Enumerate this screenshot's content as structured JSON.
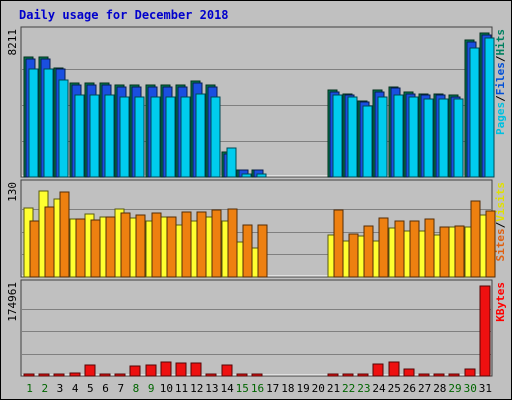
{
  "chart_data": [
    {
      "type": "bar",
      "title": "Daily usage for December 2018",
      "panel": "top",
      "y_max_label": "8211",
      "ylim": [
        0,
        8211
      ],
      "grid": true,
      "legend_placement": "right (vertical)",
      "legend": [
        {
          "label": "Pages",
          "color": "#00c0e0"
        },
        {
          "label": "/",
          "color": "#000000"
        },
        {
          "label": "Files",
          "color": "#0050d8"
        },
        {
          "label": "/",
          "color": "#000000"
        },
        {
          "label": "Hits",
          "color": "#008060"
        }
      ],
      "series": [
        {
          "name": "Hits",
          "color": "#008050",
          "values": [
            6850,
            6850,
            6200,
            5350,
            5350,
            5350,
            5250,
            5250,
            5250,
            5250,
            5250,
            5450,
            5250,
            1400,
            420,
            420,
            0,
            0,
            0,
            0,
            4950,
            4750,
            4350,
            4950,
            5150,
            4850,
            4750,
            4750,
            4650,
            7800,
            8211
          ]
        },
        {
          "name": "Files",
          "color": "#1a4fe0",
          "values": [
            6750,
            6750,
            6150,
            5250,
            5250,
            5250,
            5150,
            5150,
            5150,
            5150,
            5150,
            5350,
            5150,
            1300,
            400,
            400,
            0,
            0,
            0,
            0,
            4850,
            4650,
            4250,
            4850,
            5050,
            4750,
            4650,
            4650,
            4550,
            7700,
            8100
          ]
        },
        {
          "name": "Pages",
          "color": "#00ccee",
          "values": [
            6150,
            6150,
            5550,
            4650,
            4650,
            4650,
            4550,
            4550,
            4550,
            4550,
            4550,
            4750,
            4550,
            1650,
            160,
            160,
            0,
            0,
            0,
            0,
            4650,
            4550,
            4050,
            4550,
            4650,
            4550,
            4450,
            4450,
            4450,
            7350,
            7900
          ]
        }
      ]
    },
    {
      "type": "bar",
      "panel": "middle",
      "y_max_label": "130",
      "ylim": [
        0,
        130
      ],
      "grid": true,
      "legend": [
        {
          "label": "Sites",
          "color": "#e06010"
        },
        {
          "label": "/",
          "color": "#000000"
        },
        {
          "label": "Visits",
          "color": "#e0e000"
        }
      ],
      "series": [
        {
          "name": "Visits",
          "color": "#ffff30",
          "values": [
            98,
            123,
            112,
            83,
            90,
            85,
            97,
            84,
            80,
            85,
            75,
            80,
            85,
            80,
            50,
            42,
            0,
            0,
            0,
            0,
            60,
            52,
            58,
            52,
            70,
            65,
            65,
            60,
            72,
            72,
            88
          ]
        },
        {
          "name": "Sites",
          "color": "#ee8010",
          "values": [
            80,
            100,
            122,
            83,
            81,
            85,
            91,
            88,
            91,
            85,
            93,
            93,
            96,
            97,
            75,
            75,
            0,
            0,
            0,
            0,
            96,
            62,
            73,
            84,
            80,
            80,
            83,
            72,
            73,
            108,
            94
          ]
        }
      ]
    },
    {
      "type": "bar",
      "panel": "bottom",
      "y_max_label": "174961",
      "ylim": [
        0,
        174961
      ],
      "grid": true,
      "legend": [
        {
          "label": "KBytes",
          "color": "#ff0000"
        }
      ],
      "series": [
        {
          "name": "KBytes",
          "color": "#ee1010",
          "values": [
            3800,
            2200,
            3800,
            5000,
            22000,
            2200,
            3000,
            20000,
            22000,
            27000,
            25000,
            25000,
            2200,
            22000,
            2200,
            2200,
            0,
            0,
            0,
            0,
            2200,
            2200,
            2200,
            24000,
            27000,
            13000,
            3800,
            2200,
            2200,
            14000,
            174961
          ]
        }
      ],
      "categories": [
        "1",
        "2",
        "3",
        "4",
        "5",
        "6",
        "7",
        "8",
        "9",
        "10",
        "11",
        "12",
        "13",
        "14",
        "15",
        "16",
        "17",
        "18",
        "19",
        "20",
        "21",
        "22",
        "23",
        "24",
        "25",
        "26",
        "27",
        "28",
        "29",
        "30",
        "31"
      ],
      "category_colors": [
        "#006600",
        "#006600",
        "#000000",
        "#000000",
        "#000000",
        "#000000",
        "#000000",
        "#006600",
        "#006600",
        "#000000",
        "#000000",
        "#000000",
        "#000000",
        "#000000",
        "#006600",
        "#006600",
        "#000000",
        "#000000",
        "#000000",
        "#000000",
        "#000000",
        "#006600",
        "#006600",
        "#000000",
        "#000000",
        "#000000",
        "#000000",
        "#000000",
        "#006600",
        "#006600",
        "#000000"
      ]
    }
  ]
}
